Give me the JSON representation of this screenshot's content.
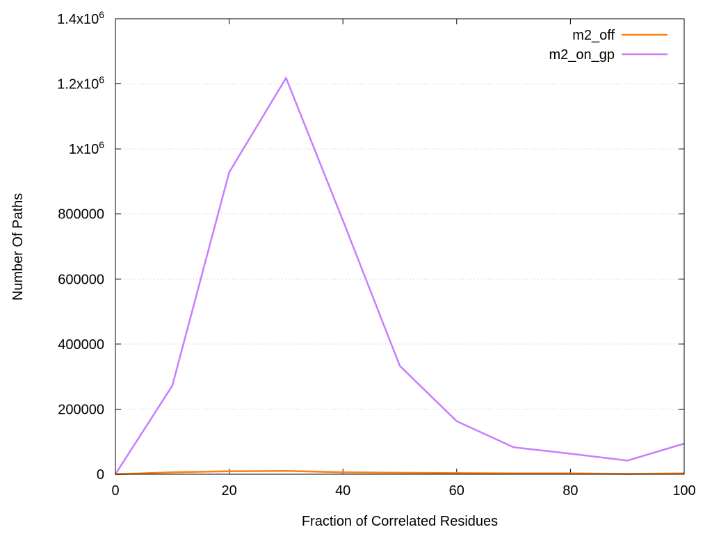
{
  "chart_data": {
    "type": "line",
    "title": "",
    "xlabel": "Fraction of Correlated Residues",
    "ylabel": "Number Of Paths",
    "xlim": [
      0,
      100
    ],
    "ylim": [
      0,
      1400000
    ],
    "xticks": [
      0,
      20,
      40,
      60,
      80,
      100
    ],
    "xtick_labels": [
      "0",
      "20",
      "40",
      "60",
      "80",
      "100"
    ],
    "yticks": [
      0,
      200000,
      400000,
      600000,
      800000,
      1000000,
      1200000,
      1400000
    ],
    "ytick_labels": [
      {
        "text": "0",
        "sup": ""
      },
      {
        "text": "200000",
        "sup": ""
      },
      {
        "text": "400000",
        "sup": ""
      },
      {
        "text": "600000",
        "sup": ""
      },
      {
        "text": "800000",
        "sup": ""
      },
      {
        "text": "1x10",
        "sup": "6"
      },
      {
        "text": "1.2x10",
        "sup": "6"
      },
      {
        "text": "1.4x10",
        "sup": "6"
      }
    ],
    "grid": true,
    "legend_position": "top-right",
    "x": [
      0,
      10,
      20,
      30,
      40,
      50,
      60,
      70,
      80,
      90,
      100
    ],
    "series": [
      {
        "name": "m2_off",
        "color": "#ff7f0e",
        "values": [
          0,
          6000,
          9000,
          10000,
          6000,
          4500,
          3500,
          2500,
          2500,
          1000,
          2500
        ]
      },
      {
        "name": "m2_on_gp",
        "color": "#c77dff",
        "values": [
          0,
          272000,
          928000,
          1218000,
          780000,
          333000,
          163000,
          83000,
          63000,
          42000,
          94000
        ]
      }
    ]
  }
}
